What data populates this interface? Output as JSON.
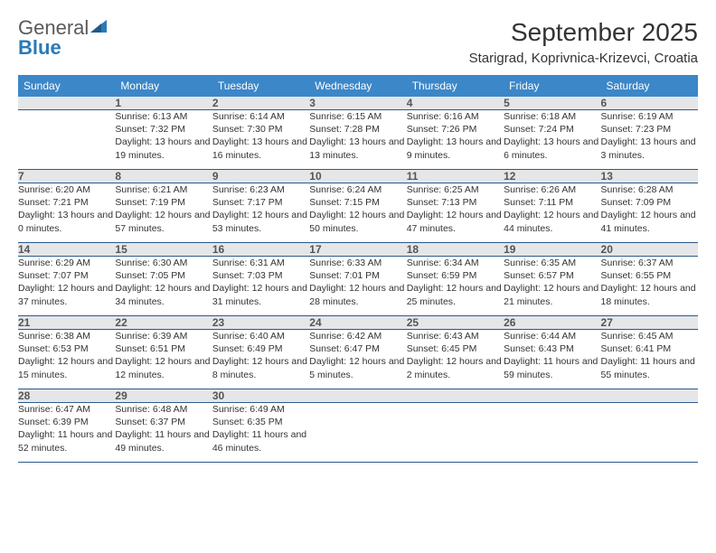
{
  "brand": {
    "word1": "General",
    "word2": "Blue"
  },
  "title": "September 2025",
  "location": "Starigrad, Koprivnica-Krizevci, Croatia",
  "colors": {
    "header_bg": "#3b87c8",
    "header_text": "#ffffff",
    "daynum_bg": "#e4e6e8",
    "daynum_text": "#555555",
    "rule": "#2a5a8a",
    "body_text": "#333333",
    "logo_gray": "#5a5a5a",
    "logo_blue": "#2a7ab8"
  },
  "weekdays": [
    "Sunday",
    "Monday",
    "Tuesday",
    "Wednesday",
    "Thursday",
    "Friday",
    "Saturday"
  ],
  "weeks": [
    {
      "nums": [
        "",
        "1",
        "2",
        "3",
        "4",
        "5",
        "6"
      ],
      "cells": [
        "",
        "Sunrise: 6:13 AM\nSunset: 7:32 PM\nDaylight: 13 hours and 19 minutes.",
        "Sunrise: 6:14 AM\nSunset: 7:30 PM\nDaylight: 13 hours and 16 minutes.",
        "Sunrise: 6:15 AM\nSunset: 7:28 PM\nDaylight: 13 hours and 13 minutes.",
        "Sunrise: 6:16 AM\nSunset: 7:26 PM\nDaylight: 13 hours and 9 minutes.",
        "Sunrise: 6:18 AM\nSunset: 7:24 PM\nDaylight: 13 hours and 6 minutes.",
        "Sunrise: 6:19 AM\nSunset: 7:23 PM\nDaylight: 13 hours and 3 minutes."
      ]
    },
    {
      "nums": [
        "7",
        "8",
        "9",
        "10",
        "11",
        "12",
        "13"
      ],
      "cells": [
        "Sunrise: 6:20 AM\nSunset: 7:21 PM\nDaylight: 13 hours and 0 minutes.",
        "Sunrise: 6:21 AM\nSunset: 7:19 PM\nDaylight: 12 hours and 57 minutes.",
        "Sunrise: 6:23 AM\nSunset: 7:17 PM\nDaylight: 12 hours and 53 minutes.",
        "Sunrise: 6:24 AM\nSunset: 7:15 PM\nDaylight: 12 hours and 50 minutes.",
        "Sunrise: 6:25 AM\nSunset: 7:13 PM\nDaylight: 12 hours and 47 minutes.",
        "Sunrise: 6:26 AM\nSunset: 7:11 PM\nDaylight: 12 hours and 44 minutes.",
        "Sunrise: 6:28 AM\nSunset: 7:09 PM\nDaylight: 12 hours and 41 minutes."
      ]
    },
    {
      "nums": [
        "14",
        "15",
        "16",
        "17",
        "18",
        "19",
        "20"
      ],
      "cells": [
        "Sunrise: 6:29 AM\nSunset: 7:07 PM\nDaylight: 12 hours and 37 minutes.",
        "Sunrise: 6:30 AM\nSunset: 7:05 PM\nDaylight: 12 hours and 34 minutes.",
        "Sunrise: 6:31 AM\nSunset: 7:03 PM\nDaylight: 12 hours and 31 minutes.",
        "Sunrise: 6:33 AM\nSunset: 7:01 PM\nDaylight: 12 hours and 28 minutes.",
        "Sunrise: 6:34 AM\nSunset: 6:59 PM\nDaylight: 12 hours and 25 minutes.",
        "Sunrise: 6:35 AM\nSunset: 6:57 PM\nDaylight: 12 hours and 21 minutes.",
        "Sunrise: 6:37 AM\nSunset: 6:55 PM\nDaylight: 12 hours and 18 minutes."
      ]
    },
    {
      "nums": [
        "21",
        "22",
        "23",
        "24",
        "25",
        "26",
        "27"
      ],
      "cells": [
        "Sunrise: 6:38 AM\nSunset: 6:53 PM\nDaylight: 12 hours and 15 minutes.",
        "Sunrise: 6:39 AM\nSunset: 6:51 PM\nDaylight: 12 hours and 12 minutes.",
        "Sunrise: 6:40 AM\nSunset: 6:49 PM\nDaylight: 12 hours and 8 minutes.",
        "Sunrise: 6:42 AM\nSunset: 6:47 PM\nDaylight: 12 hours and 5 minutes.",
        "Sunrise: 6:43 AM\nSunset: 6:45 PM\nDaylight: 12 hours and 2 minutes.",
        "Sunrise: 6:44 AM\nSunset: 6:43 PM\nDaylight: 11 hours and 59 minutes.",
        "Sunrise: 6:45 AM\nSunset: 6:41 PM\nDaylight: 11 hours and 55 minutes."
      ]
    },
    {
      "nums": [
        "28",
        "29",
        "30",
        "",
        "",
        "",
        ""
      ],
      "cells": [
        "Sunrise: 6:47 AM\nSunset: 6:39 PM\nDaylight: 11 hours and 52 minutes.",
        "Sunrise: 6:48 AM\nSunset: 6:37 PM\nDaylight: 11 hours and 49 minutes.",
        "Sunrise: 6:49 AM\nSunset: 6:35 PM\nDaylight: 11 hours and 46 minutes.",
        "",
        "",
        "",
        ""
      ]
    }
  ]
}
